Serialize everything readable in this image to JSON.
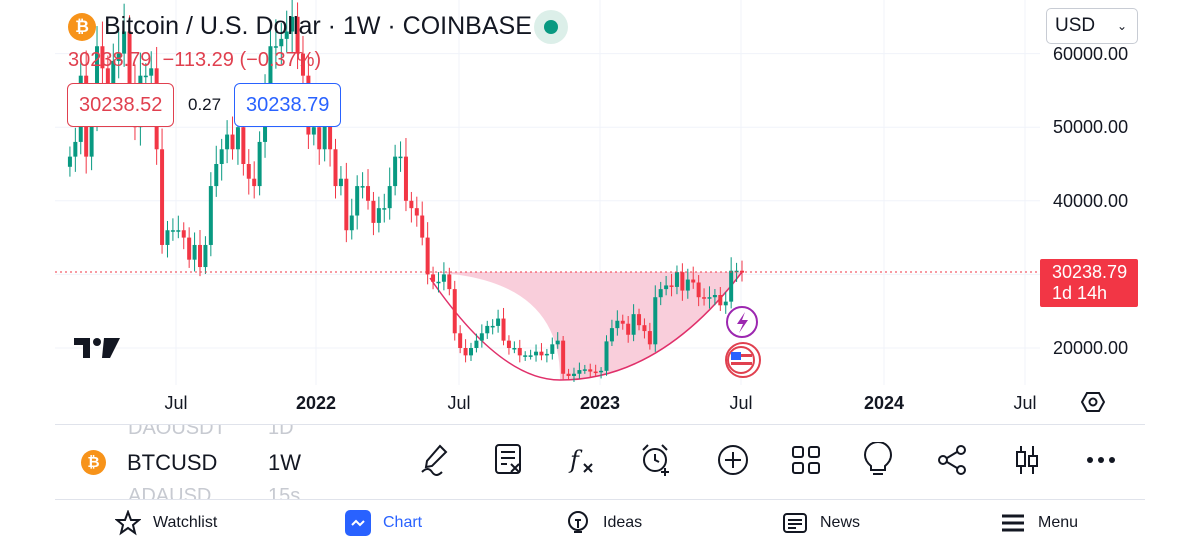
{
  "header": {
    "title": "Bitcoin / U.S. Dollar · 1W · COINBASE",
    "last": "30238.79",
    "change": "−113.29",
    "change_pct": "(−0.37%)",
    "bid": "30238.52",
    "spread": "0.27",
    "ask": "30238.79",
    "currency": "USD",
    "live_status_color": "#089981"
  },
  "price_tag": {
    "price": "30238.79",
    "countdown": "1d 14h"
  },
  "axis": {
    "y_labels": [
      "60000.00",
      "50000.00",
      "40000.00",
      "20000.00"
    ],
    "x_labels": [
      "Jul",
      "2022",
      "Jul",
      "2023",
      "Jul",
      "2024",
      "Jul"
    ]
  },
  "symbol_bar": {
    "prev": "DAOUSDT",
    "prev_tf": "1D",
    "symbol": "BTCUSD",
    "timeframe": "1W",
    "next": "ADAUSD",
    "next_tf": "15s"
  },
  "tools": [
    "draw-pencil-icon",
    "remove-indicators-icon",
    "fx-indicators-icon",
    "alarm-plus-icon",
    "plus-circle-icon",
    "layout-grid-icon",
    "idea-bulb-icon",
    "share-icon",
    "candles-icon",
    "more-icon"
  ],
  "nav": [
    {
      "label": "Watchlist",
      "icon": "star-icon"
    },
    {
      "label": "Chart",
      "icon": "chart-icon",
      "active": true
    },
    {
      "label": "Ideas",
      "icon": "bulb-icon"
    },
    {
      "label": "News",
      "icon": "news-icon"
    },
    {
      "label": "Menu",
      "icon": "menu-icon"
    }
  ],
  "colors": {
    "up": "#089981",
    "down": "#f23645",
    "accent": "#2962ff",
    "pattern_fill": "#f8c6d5"
  },
  "chart_data": {
    "type": "candlestick",
    "interval": "1W",
    "symbol": "BTCUSD",
    "ylim": [
      15000,
      65000
    ],
    "x_start": "2021-02-08",
    "closes": [
      46000,
      48000,
      57000,
      46000,
      51000,
      61000,
      58000,
      55000,
      59000,
      60000,
      63000,
      56000,
      50000,
      57000,
      57000,
      58000,
      47000,
      34000,
      36000,
      36000,
      36000,
      35000,
      32000,
      34000,
      31000,
      34000,
      42000,
      45000,
      47000,
      49000,
      47000,
      50000,
      45000,
      43000,
      42000,
      48000,
      55000,
      61000,
      61000,
      62000,
      63000,
      65000,
      60000,
      57000,
      49000,
      50000,
      47000,
      51000,
      47000,
      42000,
      43000,
      36000,
      38000,
      42000,
      42000,
      40000,
      37000,
      39000,
      39000,
      42000,
      46000,
      46000,
      40000,
      39000,
      38000,
      35000,
      30000,
      29000,
      29000,
      30000,
      28000,
      22000,
      20000,
      19000,
      20000,
      21000,
      22000,
      23000,
      23000,
      24000,
      21000,
      20000,
      20000,
      19000,
      19000,
      19000,
      19500,
      19000,
      19200,
      20500,
      21000,
      16500,
      16200,
      16500,
      17000,
      17100,
      16800,
      16700,
      16900,
      20900,
      22700,
      23700,
      23300,
      21800,
      24600,
      23100,
      22300,
      20500,
      26900,
      28000,
      28500,
      28300,
      30300,
      27800,
      29300,
      28900,
      26900,
      26700,
      26900,
      27200,
      25800,
      26300,
      30500,
      30500,
      30238.79
    ],
    "last_price": 30238.79
  }
}
